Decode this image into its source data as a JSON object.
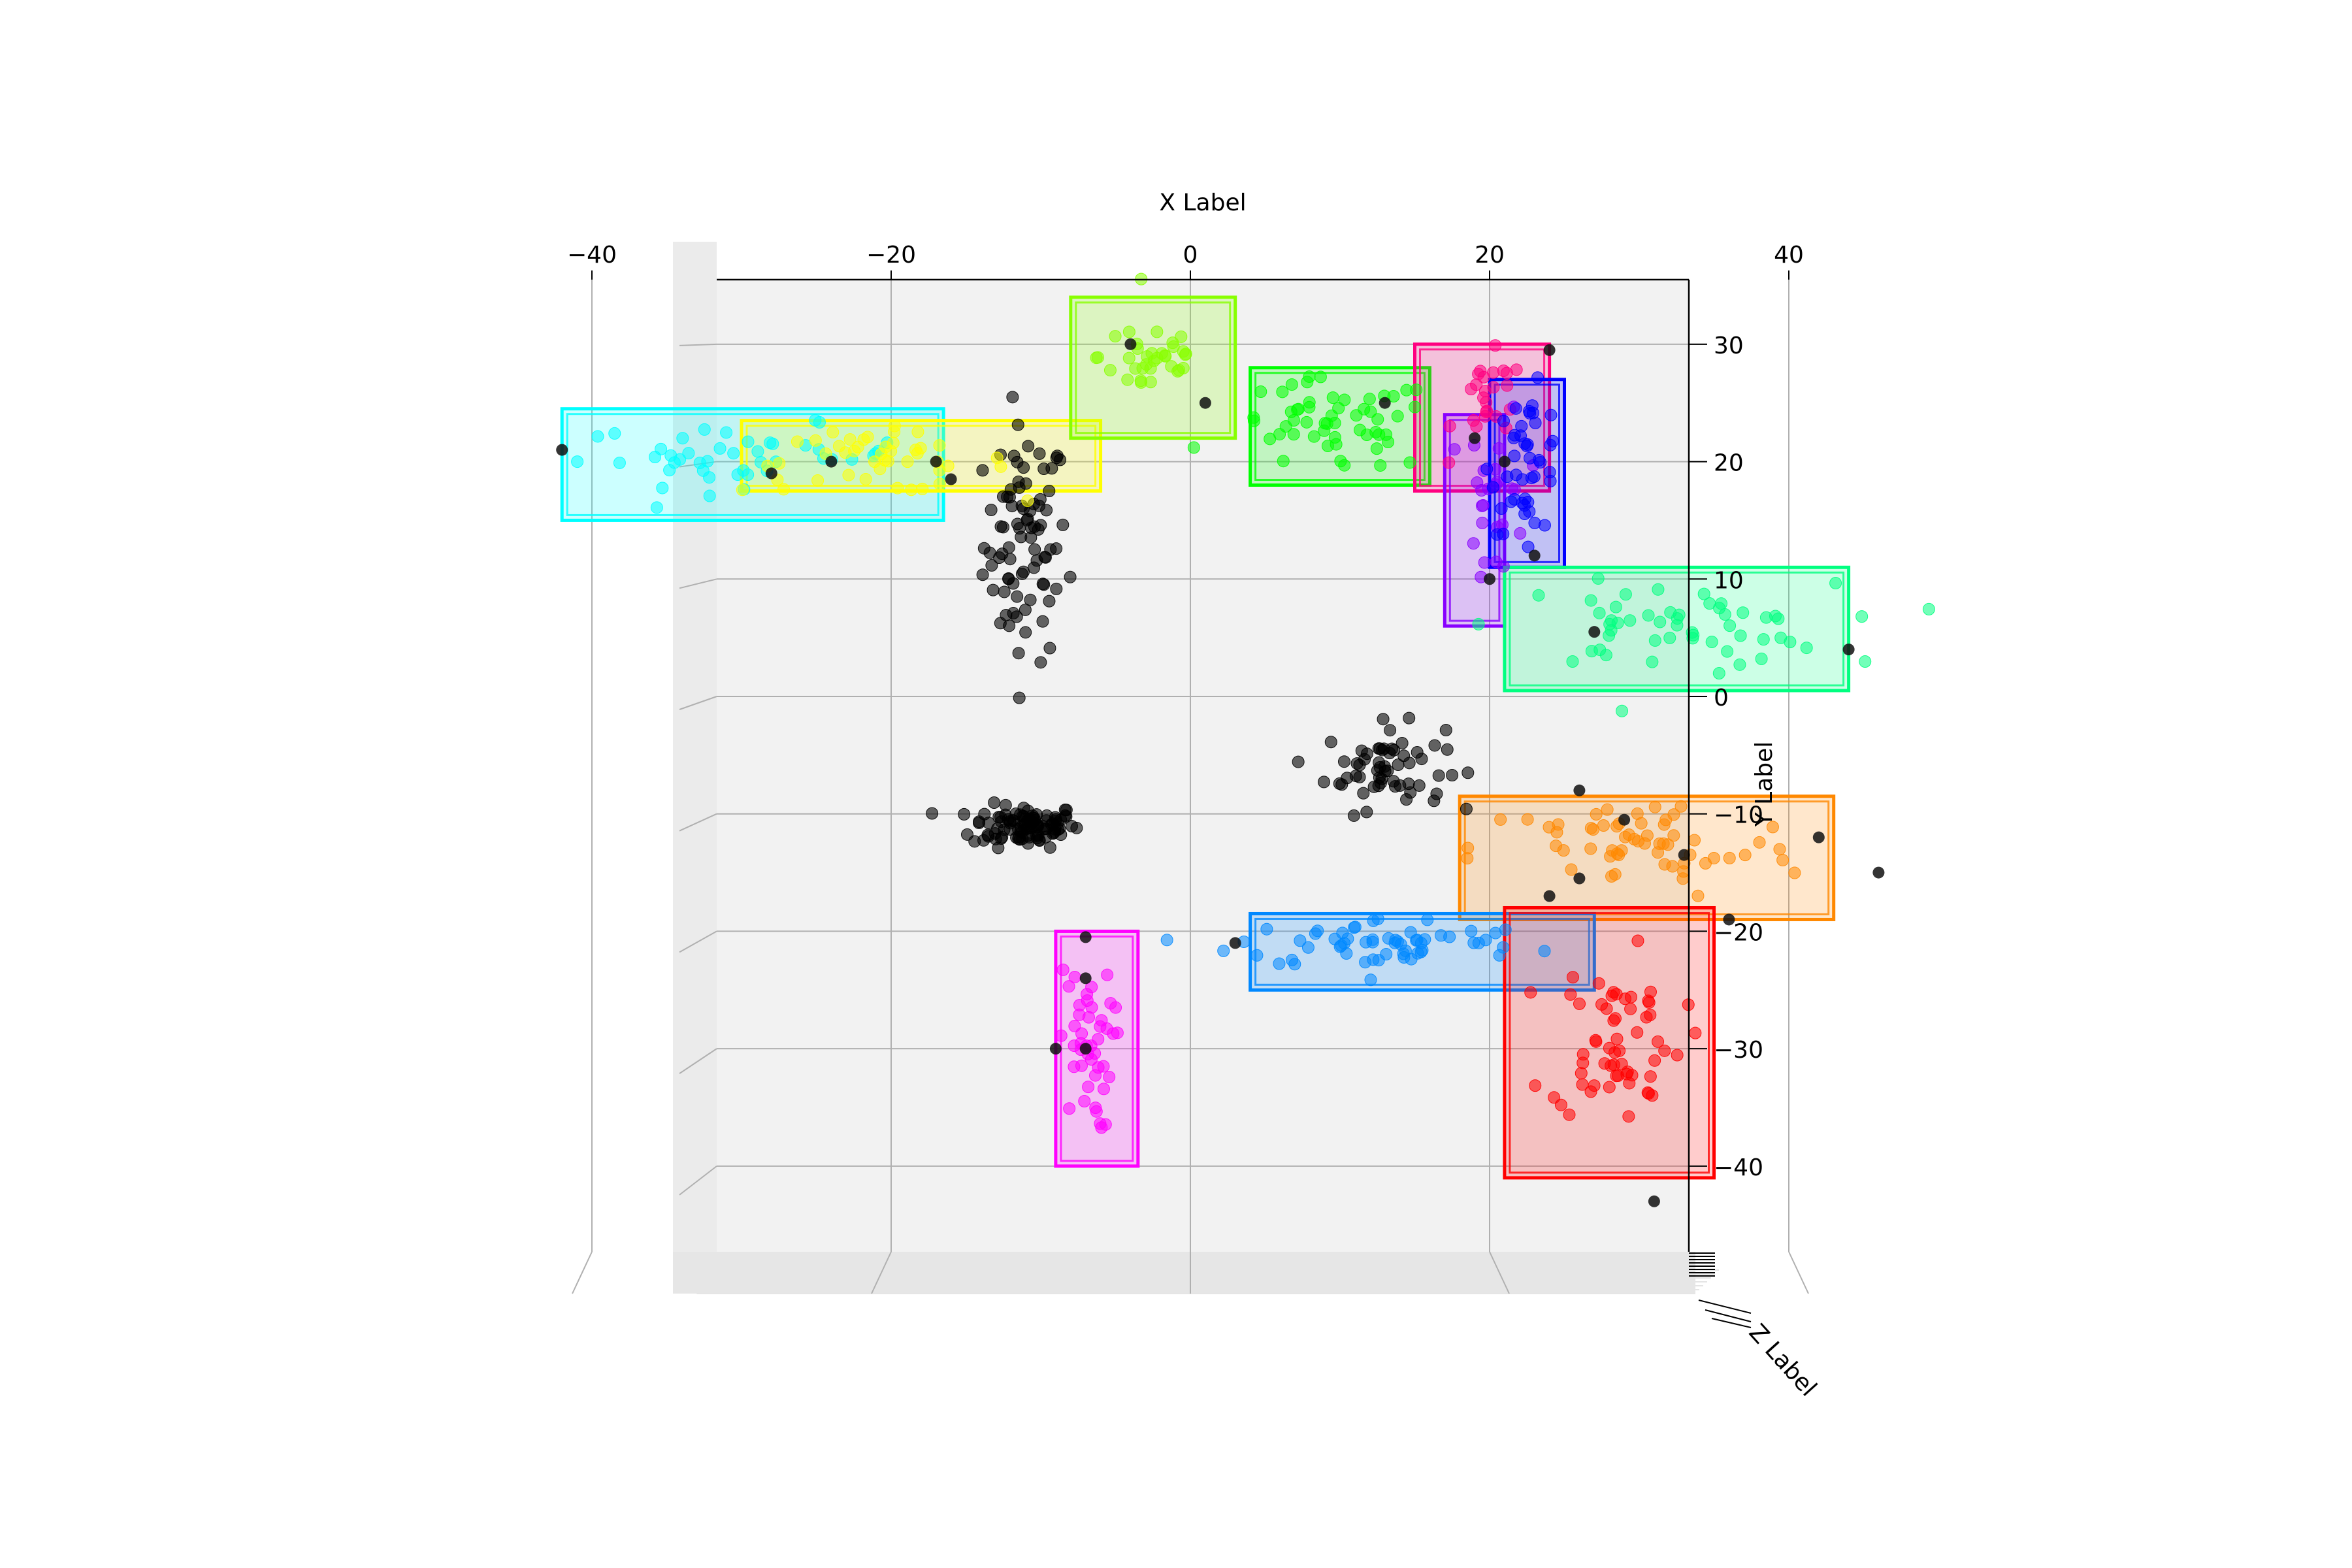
{
  "chart_data": {
    "type": "scatter",
    "projection": "3d viewed from top (z axis pointing at viewer)",
    "xlabel": "X Label",
    "ylabel": "Y Label",
    "zlabel": "Z Label",
    "xlim": [
      -48,
      50
    ],
    "ylim": [
      -46,
      36
    ],
    "xticks": [
      -40,
      -20,
      0,
      20,
      40
    ],
    "yticks": [
      30,
      20,
      10,
      0,
      -10,
      -20,
      -30,
      -40
    ],
    "xtick_labels": [
      "−40",
      "−20",
      "0",
      "20",
      "40"
    ],
    "ytick_labels": [
      "30",
      "20",
      "10",
      "0",
      "−10",
      "−20",
      "−30",
      "−40"
    ],
    "grid": true,
    "pane_color": "#f2f2f2",
    "clusters": [
      {
        "color": "#00ffff",
        "center": [
          -30,
          20.5
        ],
        "spread": [
          5.5,
          1.3
        ],
        "n": 45,
        "box": [
          -42,
          15,
          -16.5,
          24.5
        ]
      },
      {
        "color": "#ffff00",
        "center": [
          -21,
          20
        ],
        "spread": [
          4.5,
          1.3
        ],
        "n": 45,
        "box": [
          -30,
          17.5,
          -6,
          23.5
        ]
      },
      {
        "color": "#88ff00",
        "center": [
          -2.5,
          29
        ],
        "spread": [
          1.8,
          2.0
        ],
        "n": 35,
        "box": [
          -8,
          22,
          3,
          34
        ]
      },
      {
        "color": "#00ff00",
        "center": [
          9.5,
          23
        ],
        "spread": [
          3.5,
          2.0
        ],
        "n": 55,
        "box": [
          4,
          18,
          16,
          28
        ]
      },
      {
        "color": "#ff0080",
        "center": [
          20,
          25
        ],
        "spread": [
          1.2,
          2.0
        ],
        "n": 25,
        "box": [
          15,
          17.5,
          24,
          30
        ]
      },
      {
        "color": "#8800ff",
        "center": [
          20.5,
          17
        ],
        "spread": [
          1.0,
          4.0
        ],
        "n": 25,
        "box": [
          17,
          6,
          21,
          24
        ]
      },
      {
        "color": "#0000ff",
        "center": [
          22.5,
          20
        ],
        "spread": [
          1.2,
          3.0
        ],
        "n": 45,
        "box": [
          20,
          11,
          25,
          27
        ]
      },
      {
        "color": "#00ff80",
        "center": [
          32,
          6
        ],
        "spread": [
          5.5,
          1.8
        ],
        "n": 55,
        "box": [
          21,
          0.5,
          44,
          11
        ]
      },
      {
        "color": "#ff8800",
        "center": [
          30,
          -13
        ],
        "spread": [
          5.5,
          2.2
        ],
        "n": 60,
        "box": [
          18,
          -19,
          43,
          -8.5
        ]
      },
      {
        "color": "#0088ff",
        "center": [
          13,
          -21
        ],
        "spread": [
          5.0,
          1.1
        ],
        "n": 60,
        "box": [
          4,
          -25,
          27,
          -18.5
        ]
      },
      {
        "color": "#ff0000",
        "center": [
          28.5,
          -29
        ],
        "spread": [
          2.2,
          3.5
        ],
        "n": 60,
        "box": [
          21,
          -41,
          35,
          -18
        ]
      },
      {
        "color": "#ff00ff",
        "center": [
          -7,
          -30
        ],
        "spread": [
          0.9,
          3.5
        ],
        "n": 45,
        "box": [
          -9,
          -40,
          -3.5,
          -20
        ]
      }
    ],
    "unlabeled_clusters": [
      {
        "color": "#000000",
        "center": [
          -11,
          13
        ],
        "spread": [
          1.4,
          5.0
        ],
        "n": 85
      },
      {
        "color": "#000000",
        "center": [
          -11,
          -11
        ],
        "spread": [
          1.8,
          0.9
        ],
        "n": 100
      },
      {
        "color": "#000000",
        "center": [
          13,
          -6
        ],
        "spread": [
          2.0,
          1.8
        ],
        "n": 60
      }
    ]
  }
}
